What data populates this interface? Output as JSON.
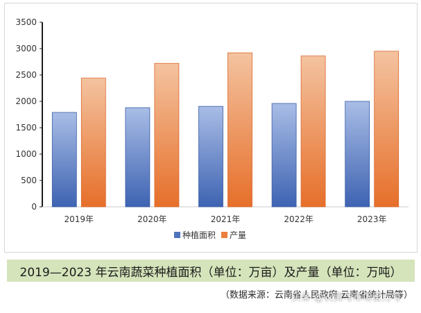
{
  "chart_data": {
    "type": "bar",
    "categories": [
      "2019年",
      "2020年",
      "2021年",
      "2022年",
      "2023年"
    ],
    "series": [
      {
        "name": "种植面积",
        "values": [
          1790,
          1880,
          1905,
          1960,
          2000
        ],
        "color": "#4f73bd"
      },
      {
        "name": "产量",
        "values": [
          2440,
          2720,
          2920,
          2860,
          2950
        ],
        "color": "#ea7f3c"
      }
    ],
    "ylim": [
      0,
      3500
    ],
    "yticks": [
      "0",
      "500",
      "1000",
      "1500",
      "2000",
      "2500",
      "3000",
      "3500"
    ],
    "grid": false,
    "legend_position": "bottom-center"
  },
  "caption": "2019—2023 年云南蔬菜种植面积（单位：万亩）及产量（单位：万吨）",
  "source": "（数据来源：云南省人民政府 云南省统计局等）",
  "watermark": "头条 @农资与市场官方号"
}
